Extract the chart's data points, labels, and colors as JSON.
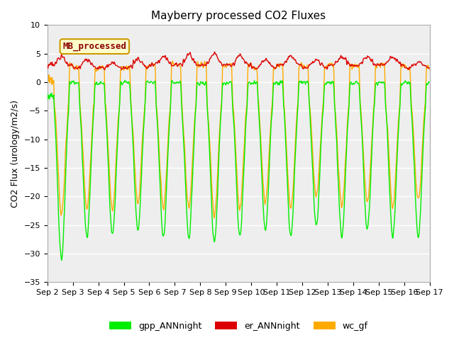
{
  "title": "Mayberry processed CO2 Fluxes",
  "ylabel": "CO2 Flux (urology/m2/s)",
  "ylim": [
    -35,
    10
  ],
  "yticks": [
    -35,
    -30,
    -25,
    -20,
    -15,
    -10,
    -5,
    0,
    5,
    10
  ],
  "xtick_labels": [
    "Sep 2",
    "Sep 3",
    "Sep 4",
    "Sep 5",
    "Sep 6",
    "Sep 7",
    "Sep 8",
    "Sep 9",
    "Sep 10",
    "Sep 11",
    "Sep 12",
    "Sep 13",
    "Sep 14",
    "Sep 15",
    "Sep 16",
    "Sep 17"
  ],
  "legend_entries": [
    "gpp_ANNnight",
    "er_ANNnight",
    "wc_gf"
  ],
  "inset_label": "MB_processed",
  "inset_label_color": "#880000",
  "inset_bg_color": "#ffffcc",
  "inset_border_color": "#cc9900",
  "gpp_color": "#00ee00",
  "er_color": "#dd0000",
  "wc_color": "#ffaa00",
  "plot_bg": "#eeeeee",
  "line_width": 1.0,
  "n_days": 15,
  "points_per_day": 48,
  "gpp_min_depths": [
    -31,
    -27,
    -27,
    -26,
    -27,
    -27,
    -28,
    -27,
    -26,
    -27,
    -25,
    -27,
    -26,
    -27,
    -27
  ],
  "wc_min_depths": [
    -23,
    -22,
    -22,
    -21,
    -22,
    -22,
    -23,
    -22,
    -21,
    -22,
    -20,
    -22,
    -21,
    -22,
    -21
  ],
  "er_day_peak": [
    4.5,
    4.0,
    3.5,
    4.0,
    4.5,
    5.0,
    5.0,
    4.5,
    4.0,
    4.5,
    4.0,
    4.5,
    4.5,
    4.5,
    3.5
  ],
  "er_night_base": [
    3.0,
    2.5,
    2.5,
    2.5,
    3.0,
    3.0,
    3.0,
    3.0,
    2.5,
    3.0,
    2.5,
    3.0,
    3.0,
    3.0,
    2.5
  ]
}
